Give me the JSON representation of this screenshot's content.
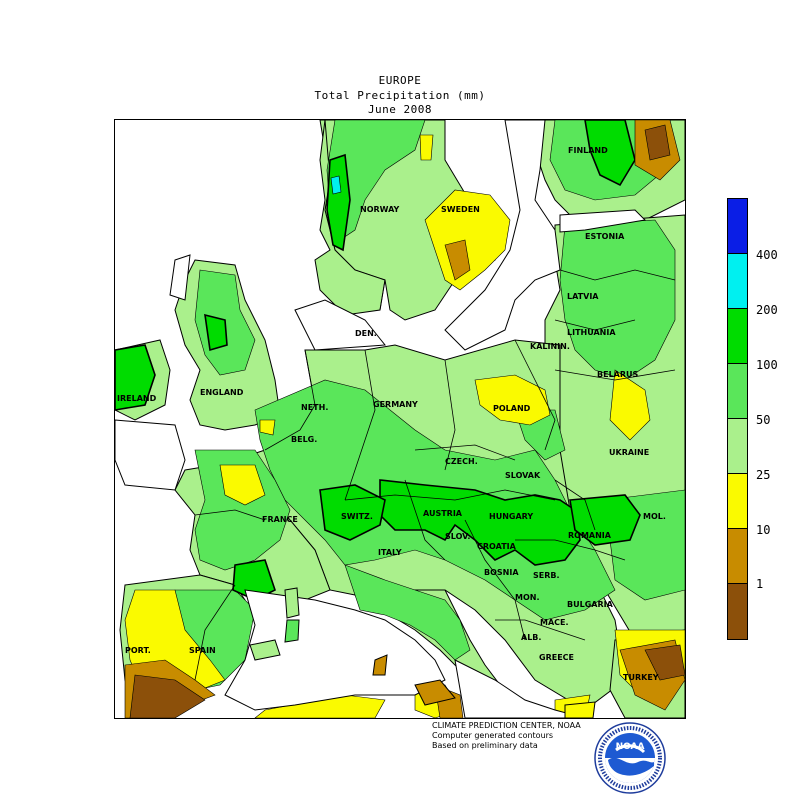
{
  "header": {
    "line1": "EUROPE",
    "line2": "Total Precipitation (mm)",
    "line3": "June 2008"
  },
  "legend": {
    "labels": [
      "400",
      "200",
      "100",
      "50",
      "25",
      "10",
      "1"
    ],
    "colors": [
      "#0a1ee6",
      "#00f0f0",
      "#00dc00",
      "#5ae65a",
      "#aaf08c",
      "#fafa00",
      "#c88c00",
      "#8c500a"
    ]
  },
  "countries": {
    "finland": "FINLAND",
    "norway": "NORWAY",
    "sweden": "SWEDEN",
    "estonia": "ESTONIA",
    "latvia": "LATVIA",
    "lithuania": "LITHUANIA",
    "kalinin": "KALININ.",
    "den": "DEN.",
    "belarus": "BELARUS",
    "ireland": "IRELAND",
    "england": "ENGLAND",
    "neth": "NETH.",
    "germany": "GERMANY",
    "poland": "POLAND",
    "belg": "BELG.",
    "ukraine": "UKRAINE",
    "czech": "CZECH.",
    "slovak": "SLOVAK",
    "france": "FRANCE",
    "switz": "SWITZ.",
    "austria": "AUSTRIA",
    "hungary": "HUNGARY",
    "mol": "MOL.",
    "romania": "ROMANIA",
    "slov": "SLOV.",
    "croatia": "CROATIA",
    "italy": "ITALY",
    "bosnia": "BOSNIA",
    "serb": "SERB.",
    "mon": "MON.",
    "bulgaria": "BULGARIA",
    "mace": "MACE.",
    "port": "PORT.",
    "spain": "SPAIN",
    "alb": "ALB.",
    "greece": "GREECE",
    "turkey": "TURKEY"
  },
  "credits": {
    "line1": "CLIMATE PREDICTION CENTER, NOAA",
    "line2": "Computer generated contours",
    "line3": "Based on preliminary data"
  },
  "logo": {
    "text": "NOAA",
    "ring_text": "NATIONAL OCEANIC AND ATMOSPHERIC ADMINISTRATION · U.S. DEPARTMENT OF COMMERCE"
  }
}
